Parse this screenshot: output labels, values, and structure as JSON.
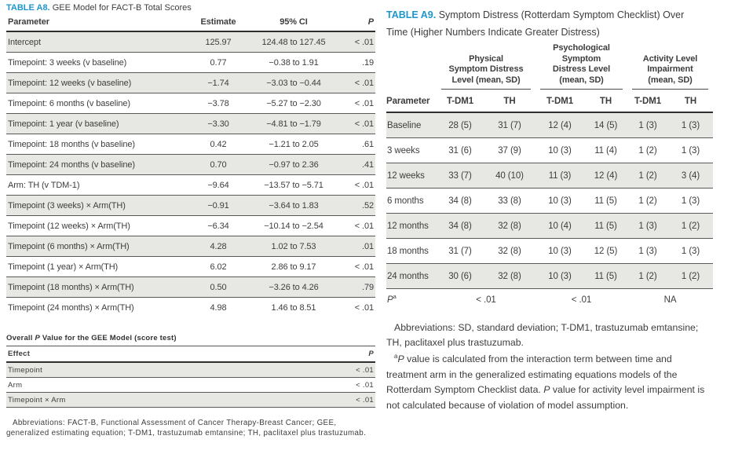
{
  "colors": {
    "accent_blue": "#1d96cb",
    "row_shade": "#e7e7e3",
    "rule_dark": "#2f2f2f"
  },
  "table_a8": {
    "label": "TABLE A8.",
    "title": "GEE Model for FACT-B Total Scores",
    "columns": [
      "Parameter",
      "Estimate",
      "95% CI",
      "P"
    ],
    "rows": [
      {
        "parameter": "Intercept",
        "estimate": "125.97",
        "ci": "124.48 to 127.45",
        "p": "< .01"
      },
      {
        "parameter": "Timepoint: 3 weeks (v baseline)",
        "estimate": "0.77",
        "ci": "−0.38 to 1.91",
        "p": ".19"
      },
      {
        "parameter": "Timepoint: 12 weeks (v baseline)",
        "estimate": "−1.74",
        "ci": "−3.03 to −0.44",
        "p": "< .01"
      },
      {
        "parameter": "Timepoint: 6 months (v baseline)",
        "estimate": "−3.78",
        "ci": "−5.27 to −2.30",
        "p": "< .01"
      },
      {
        "parameter": "Timepoint: 1 year (v baseline)",
        "estimate": "−3.30",
        "ci": "−4.81 to −1.79",
        "p": "< .01"
      },
      {
        "parameter": "Timepoint: 18 months (v baseline)",
        "estimate": "0.42",
        "ci": "−1.21 to 2.05",
        "p": ".61"
      },
      {
        "parameter": "Timepoint: 24 months (v baseline)",
        "estimate": "0.70",
        "ci": "−0.97 to 2.36",
        "p": ".41"
      },
      {
        "parameter": "Arm: TH (v TDM-1)",
        "estimate": "−9.64",
        "ci": "−13.57 to −5.71",
        "p": "< .01"
      },
      {
        "parameter": "Timepoint (3 weeks) × Arm(TH)",
        "estimate": "−0.91",
        "ci": "−3.64 to 1.83",
        "p": ".52"
      },
      {
        "parameter": "Timepoint (12 weeks) × Arm(TH)",
        "estimate": "−6.34",
        "ci": "−10.14 to −2.54",
        "p": "< .01"
      },
      {
        "parameter": "Timepoint (6 months) × Arm(TH)",
        "estimate": "4.28",
        "ci": "1.02 to 7.53",
        "p": ".01"
      },
      {
        "parameter": "Timepoint (1 year) × Arm(TH)",
        "estimate": "6.02",
        "ci": "2.86 to 9.17",
        "p": "< .01"
      },
      {
        "parameter": "Timepoint (18 months) × Arm(TH)",
        "estimate": "0.50",
        "ci": "−3.26 to 4.26",
        "p": ".79"
      },
      {
        "parameter": "Timepoint (24 months) × Arm(TH)",
        "estimate": "4.98",
        "ci": "1.46 to 8.51",
        "p": "< .01"
      }
    ],
    "overall": {
      "heading_pre": "Overall ",
      "heading_p": "P",
      "heading_post": " Value for the GEE Model (score test)",
      "columns": [
        "Effect",
        "P"
      ],
      "rows": [
        {
          "effect": "Timepoint",
          "p": "< .01"
        },
        {
          "effect": "Arm",
          "p": "< .01"
        },
        {
          "effect": "Timepoint × Arm",
          "p": "< .01"
        }
      ]
    },
    "abbreviations": "Abbreviations: FACT-B, Functional Assessment of Cancer Therapy-Breast Cancer; GEE, generalized estimating equation; T-DM1, trastuzumab emtansine; TH, paclitaxel plus trastuzumab."
  },
  "table_a9": {
    "label": "TABLE A9.",
    "title": "Symptom Distress (Rotterdam Symptom Checklist) Over Time (Higher Numbers Indicate Greater Distress)",
    "groups": [
      {
        "label": "Physical\nSymptom Distress\nLevel (mean, SD)"
      },
      {
        "label": "Psychological\nSymptom\nDistress Level\n(mean, SD)"
      },
      {
        "label": "Activity Level\nImpairment\n(mean, SD)"
      }
    ],
    "param_header": "Parameter",
    "subcols": [
      "T-DM1",
      "TH",
      "T-DM1",
      "TH",
      "T-DM1",
      "TH"
    ],
    "rows": [
      {
        "parameter": "Baseline",
        "v1": "28 (5)",
        "v2": "31 (7)",
        "v3": "12 (4)",
        "v4": "14 (5)",
        "v5": "1 (3)",
        "v6": "1 (3)"
      },
      {
        "parameter": "3 weeks",
        "v1": "31 (6)",
        "v2": "37 (9)",
        "v3": "10 (3)",
        "v4": "11 (4)",
        "v5": "1 (2)",
        "v6": "1 (3)"
      },
      {
        "parameter": "12 weeks",
        "v1": "33 (7)",
        "v2": "40 (10)",
        "v3": "11 (3)",
        "v4": "12 (4)",
        "v5": "1 (2)",
        "v6": "3 (4)"
      },
      {
        "parameter": "6 months",
        "v1": "34 (8)",
        "v2": "33 (8)",
        "v3": "10 (3)",
        "v4": "11 (5)",
        "v5": "1 (2)",
        "v6": "1 (3)"
      },
      {
        "parameter": "12 months",
        "v1": "34 (8)",
        "v2": "32 (8)",
        "v3": "10 (4)",
        "v4": "11 (5)",
        "v5": "1 (3)",
        "v6": "1 (2)"
      },
      {
        "parameter": "18 months",
        "v1": "31 (7)",
        "v2": "32 (8)",
        "v3": "10 (3)",
        "v4": "12 (5)",
        "v5": "1 (3)",
        "v6": "1 (3)"
      },
      {
        "parameter": "24 months",
        "v1": "30 (6)",
        "v2": "32 (8)",
        "v3": "10 (3)",
        "v4": "11 (5)",
        "v5": "1 (2)",
        "v6": "1 (2)"
      }
    ],
    "p_row": {
      "label_p": "P",
      "label_sup": "a",
      "physical": "< .01",
      "psychological": "< .01",
      "activity": "NA"
    },
    "abbreviations": "Abbreviations: SD, standard deviation; T-DM1, trastuzumab emtansine; TH, paclitaxel plus trastuzumab.",
    "footnote": {
      "marker": "a",
      "p1": "P",
      "t1": " value is calculated from the interaction term between time and treatment arm in the generalized estimating equations models of the Rotterdam Symptom Checklist data. ",
      "p2": "P",
      "t2": " value for activity level impairment is not calculated because of violation of model assumption."
    }
  }
}
